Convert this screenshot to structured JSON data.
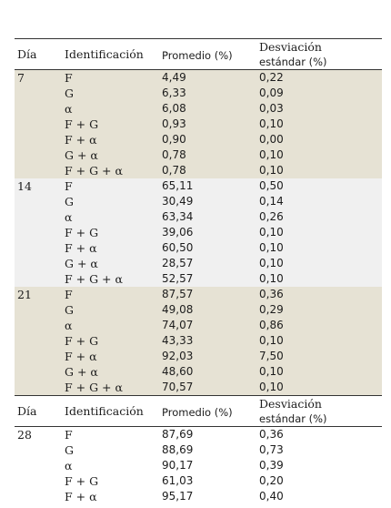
{
  "headers": {
    "dia": "Día",
    "identificacion": "Identificación",
    "promedio": "Promedio (%)",
    "desviacion_line1": "Desviación",
    "desviacion_line2": "estándar (%)"
  },
  "groups": [
    {
      "dia": "7",
      "rows": [
        {
          "id": "F",
          "promedio": "4,49",
          "desviacion": "0,22"
        },
        {
          "id": "G",
          "promedio": "6,33",
          "desviacion": "0,09"
        },
        {
          "id": "α",
          "promedio": "6,08",
          "desviacion": "0,03"
        },
        {
          "id": "F + G",
          "promedio": "0,93",
          "desviacion": "0,10"
        },
        {
          "id": "F + α",
          "promedio": "0,90",
          "desviacion": "0,00"
        },
        {
          "id": "G + α",
          "promedio": "0,78",
          "desviacion": "0,10"
        },
        {
          "id": "F + G + α",
          "promedio": "0,78",
          "desviacion": "0,10"
        }
      ]
    },
    {
      "dia": "14",
      "rows": [
        {
          "id": "F",
          "promedio": "65,11",
          "desviacion": "0,50"
        },
        {
          "id": "G",
          "promedio": "30,49",
          "desviacion": "0,14"
        },
        {
          "id": "α",
          "promedio": "63,34",
          "desviacion": "0,26"
        },
        {
          "id": "F + G",
          "promedio": "39,06",
          "desviacion": "0,10"
        },
        {
          "id": "F + α",
          "promedio": "60,50",
          "desviacion": "0,10"
        },
        {
          "id": "G + α",
          "promedio": "28,57",
          "desviacion": "0,10"
        },
        {
          "id": "F + G + α",
          "promedio": "52,57",
          "desviacion": "0,10"
        }
      ]
    },
    {
      "dia": "21",
      "rows": [
        {
          "id": "F",
          "promedio": "87,57",
          "desviacion": "0,36"
        },
        {
          "id": "G",
          "promedio": "49,08",
          "desviacion": "0,29"
        },
        {
          "id": "α",
          "promedio": "74,07",
          "desviacion": "0,86"
        },
        {
          "id": "F + G",
          "promedio": "43,33",
          "desviacion": "0,10"
        },
        {
          "id": "F + α",
          "promedio": "92,03",
          "desviacion": "7,50"
        },
        {
          "id": "G + α",
          "promedio": "48,60",
          "desviacion": "0,10"
        },
        {
          "id": "F + G + α",
          "promedio": "70,57",
          "desviacion": "0,10"
        }
      ]
    },
    {
      "dia": "28",
      "rows": [
        {
          "id": "F",
          "promedio": "87,69",
          "desviacion": "0,36"
        },
        {
          "id": "G",
          "promedio": "88,69",
          "desviacion": "0,73"
        },
        {
          "id": "α",
          "promedio": "90,17",
          "desviacion": "0,39"
        },
        {
          "id": "F + G",
          "promedio": "61,03",
          "desviacion": "0,20"
        },
        {
          "id": "F + α",
          "promedio": "95,17",
          "desviacion": "0,40"
        }
      ]
    }
  ]
}
